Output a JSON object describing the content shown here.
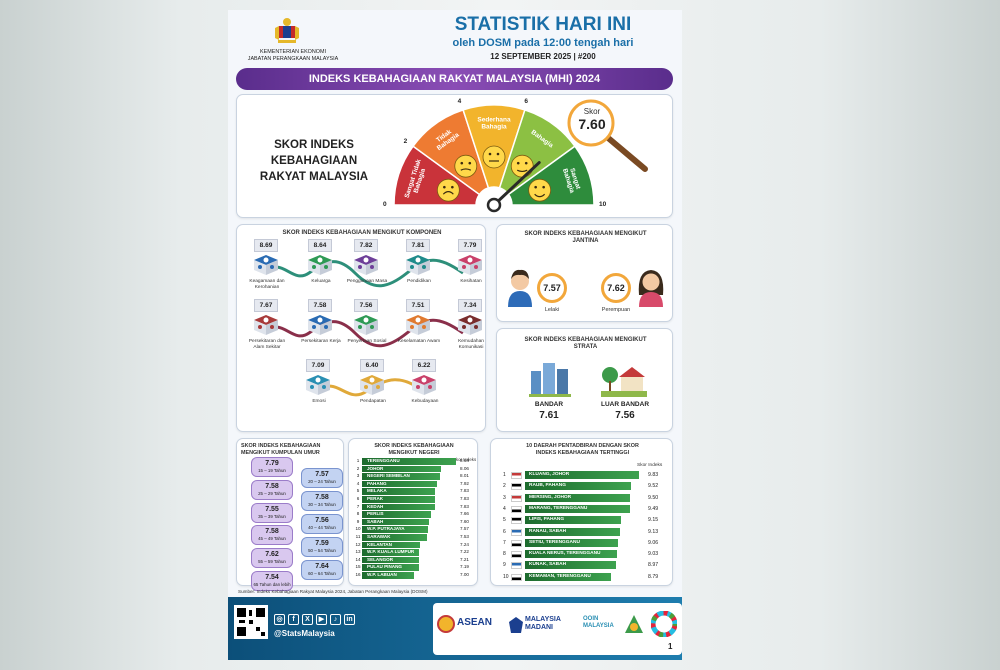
{
  "header": {
    "ministry": "KEMENTERIAN EKONOMI",
    "department": "JABATAN PERANGKAAN MALAYSIA",
    "title": "STATISTIK HARI INI",
    "subtitle": "oleh DOSM pada 12:00 tengah hari",
    "date_issue": "12 SEPTEMBER 2025   |   #200"
  },
  "banner": "INDEKS KEBAHAGIAAN RAKYAT MALAYSIA (MHI) 2024",
  "gauge": {
    "title": "SKOR INDEKS KEBAHAGIAAN RAKYAT MALAYSIA",
    "skor_label": "Skor",
    "skor_value": "7.60",
    "ticks": [
      "0",
      "2",
      "4",
      "6",
      "8",
      "10"
    ],
    "segments": [
      {
        "label": "Sangat Tidak Bahagia",
        "color": "#c9333a"
      },
      {
        "label": "Tidak Bahagia",
        "color": "#ee7b32"
      },
      {
        "label": "Sederhana Bahagia",
        "color": "#f2b42c"
      },
      {
        "label": "Bahagia",
        "color": "#8cc043"
      },
      {
        "label": "Sangat Bahagia",
        "color": "#2e8c3c"
      }
    ],
    "value_fraction": 0.76
  },
  "components": {
    "title": "SKOR INDEKS KEBAHAGIAAN MENGIKUT KOMPONEN",
    "items": [
      {
        "value": "8.69",
        "label": "Keagamaan dan Kerohanian",
        "color": "#2a6bb3"
      },
      {
        "value": "8.64",
        "label": "Keluarga",
        "color": "#2e9a55"
      },
      {
        "value": "7.82",
        "label": "Penggunaan Masa",
        "color": "#6e3f99"
      },
      {
        "value": "7.81",
        "label": "Pendidikan",
        "color": "#1f8b8b"
      },
      {
        "value": "7.79",
        "label": "Kesihatan",
        "color": "#c9406a"
      },
      {
        "value": "7.67",
        "label": "Persekitaran dan Alam Sekitar",
        "color": "#a83a3a"
      },
      {
        "value": "7.58",
        "label": "Persekitaran Kerja",
        "color": "#2a6bb3"
      },
      {
        "value": "7.56",
        "label": "Penyertaan Sosial",
        "color": "#2e9a55"
      },
      {
        "value": "7.51",
        "label": "Keselamatan Awam",
        "color": "#e07a30"
      },
      {
        "value": "7.34",
        "label": "Kemudahan Komunikasi",
        "color": "#7a2d2d"
      },
      {
        "value": "7.09",
        "label": "Emosi",
        "color": "#2a8fb3"
      },
      {
        "value": "6.40",
        "label": "Pendapatan",
        "color": "#e0a93a"
      },
      {
        "value": "6.22",
        "label": "Kebudayaan",
        "color": "#c9406a"
      }
    ]
  },
  "gender": {
    "title": "SKOR INDEKS KEBAHAGIAAN MENGIKUT JANTINA",
    "male_value": "7.57",
    "male_label": "Lelaki",
    "female_value": "7.62",
    "female_label": "Perempuan"
  },
  "strata": {
    "title": "SKOR INDEKS KEBAHAGIAAN MENGIKUT STRATA",
    "urban_label": "BANDAR",
    "urban_value": "7.61",
    "rural_label": "LUAR BANDAR",
    "rural_value": "7.56"
  },
  "age": {
    "title": "SKOR INDEKS KEBAHAGIAAN MENGIKUT KUMPULAN UMUR",
    "groups": [
      {
        "value": "7.79",
        "range": "15 – 19 Tahun"
      },
      {
        "value": "7.57",
        "range": "20 – 24 Tahun"
      },
      {
        "value": "7.58",
        "range": "25 – 29 Tahun"
      },
      {
        "value": "7.58",
        "range": "30 – 34 Tahun"
      },
      {
        "value": "7.55",
        "range": "35 – 39 Tahun"
      },
      {
        "value": "7.56",
        "range": "40 – 44 Tahun"
      },
      {
        "value": "7.58",
        "range": "45 – 49 Tahun"
      },
      {
        "value": "7.59",
        "range": "50 – 54 Tahun"
      },
      {
        "value": "7.62",
        "range": "55 – 59 Tahun"
      },
      {
        "value": "7.64",
        "range": "60 – 64 Tahun"
      },
      {
        "value": "7.54",
        "range": "65 Tahun dan lebih"
      }
    ]
  },
  "states": {
    "title": "SKOR INDEKS KEBAHAGIAAN MENGIKUT NEGERI",
    "score_header": "Skor Indeks",
    "rows": [
      {
        "rank": "1",
        "name": "TERENGGANU",
        "score": "8.64"
      },
      {
        "rank": "2",
        "name": "JOHOR",
        "score": "8.06"
      },
      {
        "rank": "3",
        "name": "NEGERI SEMBILAN",
        "score": "8.01"
      },
      {
        "rank": "4",
        "name": "PAHANG",
        "score": "7.92"
      },
      {
        "rank": "5",
        "name": "MELAKA",
        "score": "7.83"
      },
      {
        "rank": "6",
        "name": "PERAK",
        "score": "7.83"
      },
      {
        "rank": "7",
        "name": "KEDAH",
        "score": "7.83"
      },
      {
        "rank": "8",
        "name": "PERLIS",
        "score": "7.66"
      },
      {
        "rank": "9",
        "name": "SABAH",
        "score": "7.60"
      },
      {
        "rank": "10",
        "name": "W.P. PUTRAJAYA",
        "score": "7.57"
      },
      {
        "rank": "11",
        "name": "SARAWAK",
        "score": "7.53"
      },
      {
        "rank": "12",
        "name": "KELANTAN",
        "score": "7.24"
      },
      {
        "rank": "13",
        "name": "W.P. KUALA LUMPUR",
        "score": "7.22"
      },
      {
        "rank": "14",
        "name": "SELANGOR",
        "score": "7.21"
      },
      {
        "rank": "15",
        "name": "PULAU PINANG",
        "score": "7.19"
      },
      {
        "rank": "16",
        "name": "W.P. LABUAN",
        "score": "7.00"
      }
    ]
  },
  "districts": {
    "title": "10 DAERAH PENTADBIRAN DENGAN SKOR INDEKS KEBAHAGIAAN TERTINGGI",
    "score_header": "Skor Indeks",
    "rows": [
      {
        "rank": "1",
        "name": "KLUANG, JOHOR",
        "score": "9.83"
      },
      {
        "rank": "2",
        "name": "RAUB, PAHANG",
        "score": "9.52"
      },
      {
        "rank": "3",
        "name": "MERSING, JOHOR",
        "score": "9.50"
      },
      {
        "rank": "4",
        "name": "MARANG, TERENGGANU",
        "score": "9.49"
      },
      {
        "rank": "5",
        "name": "LIPIS, PAHANG",
        "score": "9.15"
      },
      {
        "rank": "6",
        "name": "RANAU, SABAH",
        "score": "9.13"
      },
      {
        "rank": "7",
        "name": "SETIU, TERENGGANU",
        "score": "9.06"
      },
      {
        "rank": "8",
        "name": "KUALA NERUS, TERENGGANU",
        "score": "9.03"
      },
      {
        "rank": "9",
        "name": "KUNAK, SABAH",
        "score": "8.97"
      },
      {
        "rank": "10",
        "name": "KEMAMAN, TERENGGANU",
        "score": "8.79"
      }
    ]
  },
  "source": "Sumber: Indeks Kebahagiaan Rakyat Malaysia 2024, Jabatan Perangkaan Malaysia (DOSM)",
  "footer": {
    "handle": "@StatsMalaysia",
    "logos": [
      "ASEAN",
      "MALAYSIA MADANI",
      "OOIN MALAYSIA"
    ],
    "page_no": "1"
  }
}
